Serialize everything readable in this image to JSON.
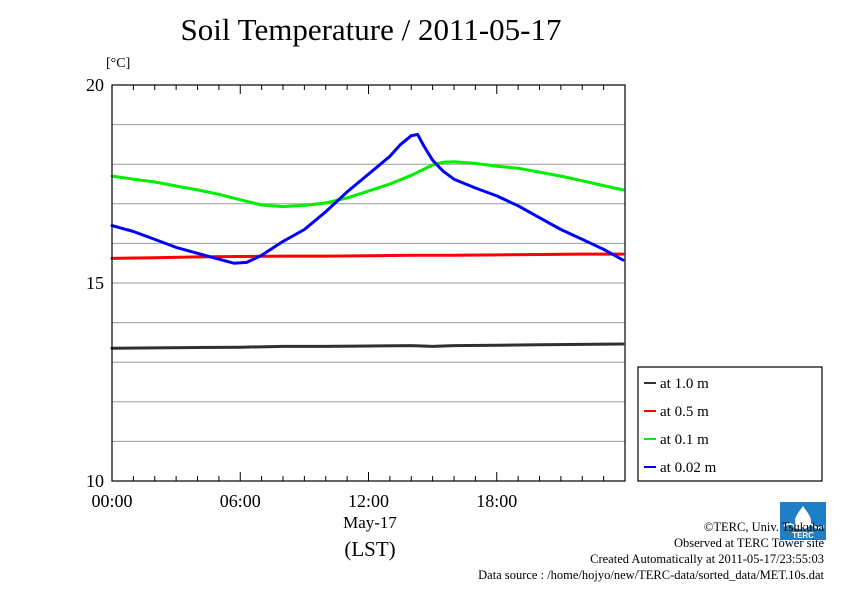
{
  "title": "Soil Temperature / 2011-05-17",
  "unit_label": "[°C]",
  "x_axis": {
    "date_label": "May-17",
    "zone_label": "(LST)"
  },
  "credits": {
    "copyright": "©TERC, Univ. Tsukuba",
    "site": "Observed at TERC Tower site",
    "created": "Created Automatically at 2011-05-17/23:55:03",
    "source": "Data source : /home/hojyo/new/TERC-data/sorted_data/MET.10s.dat"
  },
  "logo_text": "TERC",
  "chart_data": {
    "type": "line",
    "title": "Soil Temperature / 2011-05-17",
    "xlabel": "May-17 (LST)",
    "ylabel": "[°C]",
    "xlim": [
      0,
      24
    ],
    "ylim": [
      10,
      20
    ],
    "x_ticks": [
      {
        "value": 0,
        "label": "00:00"
      },
      {
        "value": 6,
        "label": "06:00"
      },
      {
        "value": 12,
        "label": "12:00"
      },
      {
        "value": 18,
        "label": "18:00"
      }
    ],
    "y_ticks": [
      {
        "value": 10,
        "label": "10"
      },
      {
        "value": 15,
        "label": "15"
      },
      {
        "value": 20,
        "label": "20"
      }
    ],
    "gridlines_y": [
      11,
      12,
      13,
      14,
      15,
      16,
      17,
      18,
      19
    ],
    "legend_position": "right, outside plot",
    "x_unit": "hours",
    "series": [
      {
        "name": "at 1.0 m",
        "color": "#303030",
        "x": [
          0,
          2,
          4,
          6,
          8,
          10,
          12,
          14,
          15,
          16,
          18,
          20,
          22,
          23.9
        ],
        "values": [
          13.35,
          13.36,
          13.37,
          13.38,
          13.4,
          13.4,
          13.41,
          13.42,
          13.4,
          13.42,
          13.43,
          13.44,
          13.45,
          13.46
        ]
      },
      {
        "name": "at 0.5 m",
        "color": "#ff0000",
        "x": [
          0,
          2,
          4,
          6,
          8,
          10,
          12,
          14,
          16,
          18,
          20,
          22,
          23.9
        ],
        "values": [
          15.62,
          15.64,
          15.66,
          15.67,
          15.68,
          15.68,
          15.69,
          15.7,
          15.7,
          15.71,
          15.72,
          15.73,
          15.73
        ]
      },
      {
        "name": "at 0.1 m",
        "color": "#00ee00",
        "x": [
          0,
          1,
          2,
          3,
          4,
          5,
          6,
          7,
          8,
          9,
          10,
          11,
          12,
          13,
          14,
          15,
          15.5,
          16,
          17,
          18,
          19,
          20,
          21,
          22,
          23,
          23.9
        ],
        "values": [
          17.7,
          17.62,
          17.55,
          17.45,
          17.35,
          17.24,
          17.1,
          16.97,
          16.93,
          16.96,
          17.02,
          17.15,
          17.32,
          17.5,
          17.72,
          17.98,
          18.05,
          18.06,
          18.02,
          17.95,
          17.9,
          17.8,
          17.7,
          17.58,
          17.46,
          17.35
        ]
      },
      {
        "name": "at 0.02 m",
        "color": "#0000ff",
        "x": [
          0,
          1,
          2,
          3,
          4,
          5,
          5.7,
          6.3,
          7,
          8,
          9,
          10,
          11,
          12,
          13,
          13.5,
          14,
          14.3,
          14.6,
          15,
          15.5,
          16,
          17,
          18,
          19,
          20,
          21,
          22,
          23,
          23.9
        ],
        "values": [
          16.45,
          16.3,
          16.1,
          15.9,
          15.75,
          15.6,
          15.5,
          15.52,
          15.7,
          16.05,
          16.35,
          16.8,
          17.3,
          17.75,
          18.2,
          18.5,
          18.72,
          18.75,
          18.45,
          18.1,
          17.82,
          17.62,
          17.4,
          17.2,
          16.95,
          16.65,
          16.35,
          16.1,
          15.85,
          15.58
        ]
      }
    ]
  }
}
